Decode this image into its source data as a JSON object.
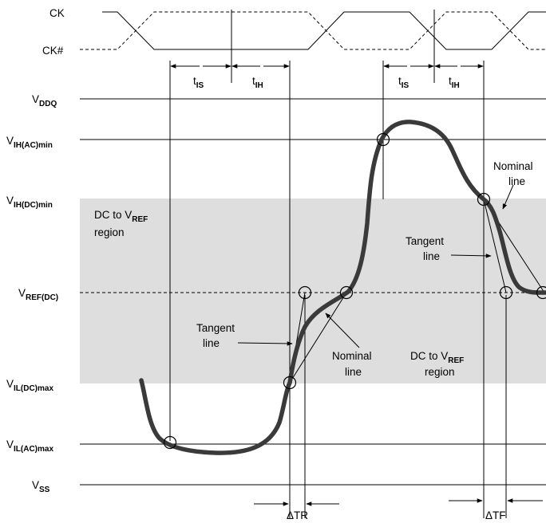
{
  "clock": {
    "ck": "CK",
    "ck_n": "CK#"
  },
  "rails": {
    "vddq": {
      "main": "V",
      "sub": "DDQ"
    },
    "vih_ac": {
      "main": "V",
      "sub": "IH(AC)min"
    },
    "vih_dc": {
      "main": "V",
      "sub": "IH(DC)min"
    },
    "vref": {
      "main": "V",
      "sub": "REF(DC)"
    },
    "vil_dc": {
      "main": "V",
      "sub": "IL(DC)max"
    },
    "vil_ac": {
      "main": "V",
      "sub": "IL(AC)max"
    },
    "vss": {
      "main": "V",
      "sub": "SS"
    }
  },
  "timing": {
    "tis": {
      "main": "t",
      "sub": "IS"
    },
    "tih": {
      "main": "t",
      "sub": "IH"
    }
  },
  "region": {
    "line1_main": "DC to V",
    "line1_sub": "REF",
    "line2": "region"
  },
  "labels": {
    "tangent_1": "Tangent",
    "tangent_2": "line",
    "nominal_1": "Nominal",
    "nominal_2": "line",
    "delta_tr": "ΔTR",
    "delta_tf": "ΔTF"
  },
  "colors": {
    "shaded_region": "#dedede",
    "signal": "#3a3a3a"
  }
}
